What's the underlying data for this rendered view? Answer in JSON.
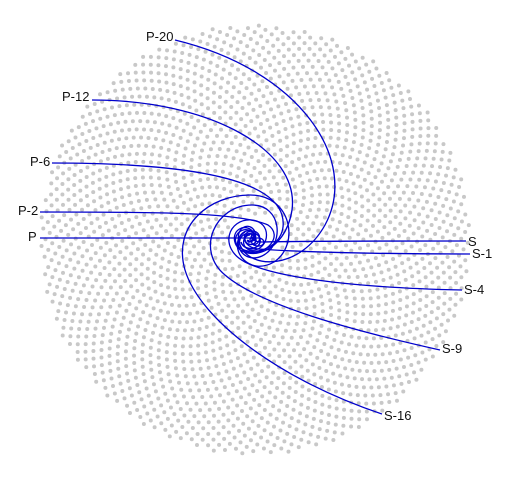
{
  "diagram": {
    "colors": {
      "background": "#ffffff",
      "dots": "#c8c8c8",
      "curves": "#0000cc",
      "text": "#111111"
    },
    "left_labels": [
      "P-20",
      "P-12",
      "P-6",
      "P-2",
      "P"
    ],
    "right_labels": [
      "S",
      "S-1",
      "S-4",
      "S-9",
      "S-16"
    ]
  }
}
